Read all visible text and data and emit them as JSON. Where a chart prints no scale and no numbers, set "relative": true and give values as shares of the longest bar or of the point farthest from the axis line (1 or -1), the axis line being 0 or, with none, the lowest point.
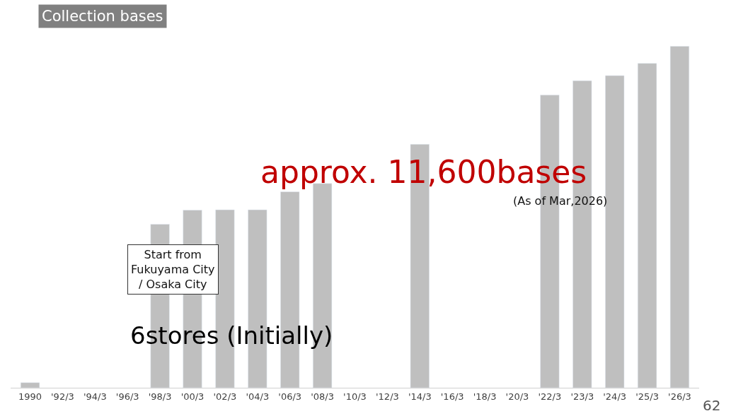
{
  "chart_data": {
    "type": "bar",
    "relative": true,
    "title": "Collection bases",
    "categories": [
      "1990",
      "'92/3",
      "'94/3",
      "'96/3",
      "'98/3",
      "'00/3",
      "'02/3",
      "'04/3",
      "'06/3",
      "'08/3",
      "'10/3",
      "'12/3",
      "'14/3",
      "'16/3",
      "'18/3",
      "'20/3",
      "'22/3",
      "'23/3",
      "'24/3",
      "'25/3",
      "'26/3"
    ],
    "values": [
      0.015,
      null,
      null,
      null,
      0.479,
      0.52,
      0.521,
      0.521,
      0.574,
      0.598,
      null,
      null,
      0.713,
      null,
      null,
      null,
      0.857,
      0.899,
      0.914,
      0.95,
      1
    ],
    "color": "#bfbfbf",
    "annotations": [
      "approx. 11,600bases",
      "(As of Mar,2026)",
      "Start from\nFukuyama City\n/ Osaka City",
      "6stores (Initially)",
      "62"
    ]
  }
}
